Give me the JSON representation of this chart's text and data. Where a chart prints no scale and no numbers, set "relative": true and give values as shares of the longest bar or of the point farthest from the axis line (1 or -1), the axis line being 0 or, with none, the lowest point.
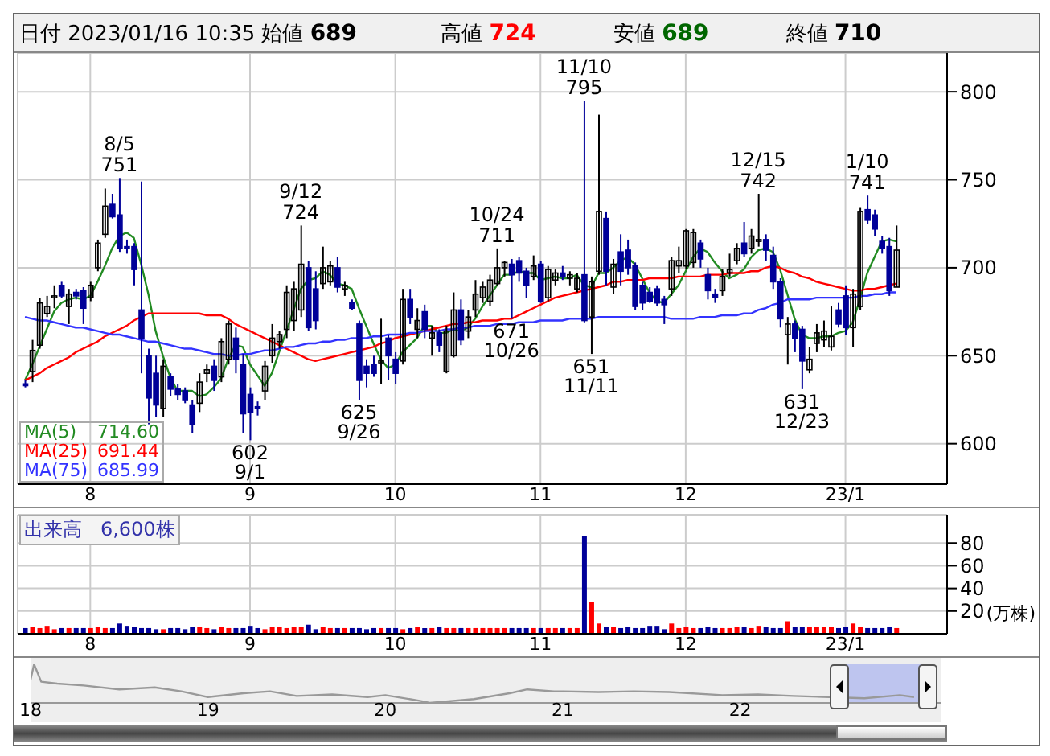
{
  "chart_data": [
    {
      "type": "candlestick",
      "title": "日付 2023/01/16 10:35",
      "annotations": [
        "始値 689",
        "高値 724",
        "安値 689",
        "終値 710",
        {
          "text": "8/5 751",
          "y": 751
        },
        {
          "text": "602 9/1",
          "y": 602
        },
        {
          "text": "9/12 724",
          "y": 724
        },
        {
          "text": "625 9/26",
          "y": 625
        },
        {
          "text": "10/24 711",
          "y": 711
        },
        {
          "text": "671 10/26",
          "y": 671
        },
        {
          "text": "11/10 795",
          "y": 795
        },
        {
          "text": "651 11/11",
          "y": 651
        },
        {
          "text": "12/15 742",
          "y": 742
        },
        {
          "text": "631 12/23",
          "y": 631
        },
        {
          "text": "1/10 741",
          "y": 741
        }
      ],
      "categories": [
        null,
        null,
        null,
        null,
        null,
        null,
        null,
        null,
        null,
        "8",
        null,
        null,
        null,
        null,
        null,
        null,
        null,
        null,
        null,
        null,
        null,
        null,
        null,
        null,
        null,
        null,
        null,
        null,
        null,
        null,
        null,
        "9",
        null,
        null,
        null,
        null,
        null,
        null,
        null,
        null,
        null,
        null,
        null,
        null,
        null,
        null,
        null,
        null,
        null,
        null,
        null,
        "10",
        null,
        null,
        null,
        null,
        null,
        null,
        null,
        null,
        null,
        null,
        null,
        null,
        null,
        null,
        null,
        null,
        null,
        null,
        null,
        "11",
        null,
        null,
        null,
        null,
        null,
        null,
        null,
        null,
        null,
        null,
        null,
        null,
        null,
        null,
        null,
        null,
        null,
        null,
        null,
        "12",
        null,
        null,
        null,
        null,
        null,
        null,
        null,
        null,
        null,
        null,
        null,
        null,
        null,
        null,
        null,
        null,
        null,
        null,
        null,
        null,
        null,
        "23/1",
        null,
        null,
        null,
        null,
        null,
        null,
        null
      ],
      "ohlc": [
        [
          634,
          636,
          632,
          633
        ],
        [
          641,
          659,
          635,
          653
        ],
        [
          656,
          683,
          654,
          680
        ],
        [
          674,
          684,
          672,
          678
        ],
        [
          683,
          690,
          677,
          684
        ],
        [
          690,
          692,
          683,
          684
        ],
        [
          678,
          688,
          668,
          685
        ],
        [
          686,
          688,
          682,
          684
        ],
        [
          687,
          689,
          668,
          677
        ],
        [
          683,
          692,
          681,
          690
        ],
        [
          700,
          716,
          698,
          714
        ],
        [
          719,
          745,
          717,
          735
        ],
        [
          736,
          742,
          728,
          729
        ],
        [
          730,
          751,
          709,
          711
        ],
        [
          712,
          716,
          708,
          711
        ],
        [
          712,
          714,
          690,
          699
        ],
        [
          676,
          749,
          640,
          660
        ],
        [
          650,
          654,
          611,
          626
        ],
        [
          640,
          650,
          615,
          622
        ],
        [
          620,
          648,
          615,
          644
        ],
        [
          638,
          640,
          627,
          631
        ],
        [
          631,
          634,
          625,
          628
        ],
        [
          630,
          632,
          623,
          625
        ],
        [
          622,
          625,
          606,
          611
        ],
        [
          623,
          640,
          618,
          635
        ],
        [
          640,
          645,
          635,
          642
        ],
        [
          644,
          648,
          630,
          636
        ],
        [
          638,
          660,
          635,
          658
        ],
        [
          648,
          670,
          645,
          668
        ],
        [
          660,
          666,
          640,
          648
        ],
        [
          645,
          651,
          606,
          617
        ],
        [
          628,
          632,
          602,
          618
        ],
        [
          621,
          624,
          616,
          620
        ],
        [
          630,
          647,
          625,
          644
        ],
        [
          650,
          668,
          646,
          660
        ],
        [
          658,
          664,
          654,
          662
        ],
        [
          665,
          690,
          660,
          686
        ],
        [
          670,
          692,
          664,
          688
        ],
        [
          676,
          724,
          672,
          702
        ],
        [
          700,
          704,
          664,
          666
        ],
        [
          688,
          698,
          665,
          670
        ],
        [
          691,
          712,
          688,
          700
        ],
        [
          692,
          704,
          690,
          701
        ],
        [
          700,
          706,
          686,
          689
        ],
        [
          688,
          692,
          684,
          690
        ],
        [
          680,
          682,
          676,
          677
        ],
        [
          668,
          670,
          625,
          636
        ],
        [
          644,
          648,
          632,
          640
        ],
        [
          645,
          650,
          638,
          640
        ],
        [
          646,
          671,
          634,
          647
        ],
        [
          660,
          662,
          636,
          650
        ],
        [
          648,
          652,
          634,
          640
        ],
        [
          647,
          688,
          645,
          682
        ],
        [
          682,
          688,
          668,
          672
        ],
        [
          665,
          677,
          660,
          670
        ],
        [
          675,
          679,
          660,
          665
        ],
        [
          660,
          667,
          650,
          663
        ],
        [
          663,
          665,
          652,
          656
        ],
        [
          641,
          667,
          640,
          664
        ],
        [
          650,
          686,
          649,
          676
        ],
        [
          676,
          682,
          656,
          659
        ],
        [
          664,
          676,
          660,
          672
        ],
        [
          676,
          693,
          672,
          685
        ],
        [
          683,
          692,
          680,
          689
        ],
        [
          681,
          696,
          678,
          693
        ],
        [
          691,
          711,
          690,
          700
        ],
        [
          700,
          704,
          695,
          703
        ],
        [
          702,
          705,
          671,
          696
        ],
        [
          704,
          706,
          692,
          697
        ],
        [
          698,
          700,
          683,
          690
        ],
        [
          695,
          707,
          693,
          701
        ],
        [
          702,
          704,
          680,
          681
        ],
        [
          683,
          701,
          681,
          699
        ],
        [
          693,
          699,
          690,
          697
        ],
        [
          697,
          701,
          693,
          695
        ],
        [
          694,
          698,
          690,
          696
        ],
        [
          688,
          697,
          686,
          694
        ],
        [
          696,
          795,
          669,
          670
        ],
        [
          672,
          695,
          651,
          692
        ],
        [
          698,
          787,
          696,
          732
        ],
        [
          728,
          732,
          690,
          698
        ],
        [
          689,
          705,
          685,
          702
        ],
        [
          709,
          719,
          690,
          698
        ],
        [
          710,
          716,
          696,
          700
        ],
        [
          701,
          703,
          676,
          678
        ],
        [
          690,
          692,
          676,
          680
        ],
        [
          686,
          689,
          680,
          681
        ],
        [
          688,
          690,
          678,
          680
        ],
        [
          682,
          684,
          668,
          679
        ],
        [
          688,
          706,
          684,
          704
        ],
        [
          701,
          712,
          697,
          704
        ],
        [
          701,
          722,
          699,
          721
        ],
        [
          703,
          722,
          700,
          720
        ],
        [
          714,
          716,
          700,
          705
        ],
        [
          696,
          700,
          682,
          687
        ],
        [
          685,
          688,
          680,
          683
        ],
        [
          687,
          699,
          684,
          695
        ],
        [
          697,
          708,
          695,
          699
        ],
        [
          704,
          714,
          702,
          711
        ],
        [
          714,
          726,
          706,
          708
        ],
        [
          711,
          722,
          708,
          718
        ],
        [
          715,
          742,
          712,
          716
        ],
        [
          716,
          719,
          704,
          710
        ],
        [
          707,
          712,
          688,
          692
        ],
        [
          692,
          694,
          666,
          671
        ],
        [
          662,
          672,
          645,
          668
        ],
        [
          668,
          670,
          652,
          660
        ],
        [
          665,
          667,
          631,
          647
        ],
        [
          642,
          655,
          640,
          648
        ],
        [
          657,
          668,
          652,
          663
        ],
        [
          659,
          670,
          655,
          664
        ],
        [
          655,
          678,
          653,
          661
        ],
        [
          676,
          680,
          666,
          668
        ],
        [
          684,
          690,
          662,
          666
        ],
        [
          666,
          688,
          655,
          685
        ],
        [
          678,
          734,
          676,
          732
        ],
        [
          733,
          741,
          725,
          727
        ],
        [
          730,
          733,
          718,
          722
        ],
        [
          715,
          718,
          708,
          711
        ],
        [
          712,
          717,
          684,
          687
        ],
        [
          689,
          724,
          689,
          710
        ]
      ],
      "series": [
        {
          "type": "line",
          "name": "MA(5) 714.60",
          "color": "#228b22",
          "values": [
            636,
            645,
            655,
            665,
            675,
            680,
            682,
            683,
            682,
            684,
            692,
            701,
            711,
            718,
            720,
            717,
            702,
            685,
            664,
            650,
            638,
            630,
            630,
            630,
            627,
            628,
            632,
            637,
            648,
            656,
            655,
            645,
            639,
            633,
            640,
            652,
            664,
            676,
            688,
            693,
            694,
            698,
            696,
            691,
            690,
            688,
            677,
            667,
            657,
            648,
            643,
            645,
            652,
            656,
            660,
            667,
            667,
            663,
            663,
            665,
            664,
            666,
            671,
            678,
            684,
            690,
            696,
            696,
            698,
            697,
            697,
            693,
            694,
            695,
            694,
            694,
            696,
            690,
            689,
            697,
            697,
            700,
            704,
            706,
            702,
            694,
            686,
            681,
            680,
            685,
            690,
            698,
            706,
            711,
            709,
            703,
            698,
            694,
            696,
            699,
            706,
            710,
            711,
            709,
            699,
            685,
            671,
            662,
            660,
            660,
            661,
            661,
            663,
            664,
            669,
            682,
            697,
            706,
            715,
            716,
            715
          ]
        },
        {
          "type": "line",
          "name": "MA(25) 691.44",
          "color": "#ff0000",
          "values": [
            636,
            638,
            640,
            643,
            645,
            647,
            649,
            652,
            654,
            656,
            658,
            661,
            663,
            665,
            667,
            670,
            672,
            674,
            674,
            674,
            674,
            674,
            674,
            674,
            674,
            673,
            673,
            673,
            671,
            668,
            666,
            664,
            662,
            660,
            658,
            656,
            654,
            652,
            650,
            648,
            647,
            648,
            649,
            650,
            651,
            652,
            653,
            654,
            655,
            657,
            658,
            660,
            661,
            662,
            663,
            664,
            665,
            666,
            667,
            668,
            668,
            669,
            669,
            670,
            670,
            670,
            671,
            671,
            673,
            675,
            677,
            679,
            681,
            683,
            684,
            685,
            686,
            687,
            688,
            689,
            690,
            692,
            692,
            693,
            693,
            693,
            694,
            694,
            694,
            694,
            695,
            695,
            695,
            695,
            696,
            696,
            696,
            697,
            697,
            697,
            698,
            698,
            700,
            701,
            700,
            698,
            697,
            695,
            694,
            692,
            691,
            690,
            689,
            688,
            687,
            687,
            688,
            688,
            689,
            690,
            691
          ]
        },
        {
          "type": "line",
          "name": "MA(75) 685.99",
          "color": "#3333ff",
          "values": [
            672,
            671,
            670,
            670,
            669,
            668,
            667,
            666,
            666,
            665,
            664,
            663,
            662,
            662,
            661,
            660,
            659,
            658,
            658,
            657,
            656,
            655,
            654,
            654,
            653,
            652,
            651,
            651,
            650,
            650,
            651,
            651,
            652,
            653,
            653,
            654,
            655,
            655,
            656,
            657,
            657,
            658,
            658,
            659,
            659,
            660,
            660,
            660,
            661,
            661,
            662,
            662,
            662,
            663,
            663,
            664,
            664,
            664,
            665,
            665,
            666,
            666,
            667,
            667,
            667,
            668,
            668,
            668,
            669,
            669,
            669,
            670,
            670,
            670,
            670,
            671,
            671,
            671,
            671,
            672,
            672,
            672,
            672,
            672,
            672,
            672,
            672,
            672,
            672,
            671,
            671,
            671,
            671,
            672,
            672,
            672,
            673,
            673,
            673,
            674,
            674,
            676,
            677,
            679,
            680,
            682,
            682,
            682,
            682,
            683,
            683,
            683,
            683,
            683,
            683,
            684,
            684,
            685,
            685,
            686,
            686
          ]
        }
      ],
      "ylim": [
        577,
        822
      ],
      "yticks": [
        600,
        650,
        700,
        750,
        800
      ],
      "grid": true,
      "legend": "bottom left"
    },
    {
      "type": "bar",
      "title": "出来高 6,600株",
      "ylabel": "(万株)",
      "categories": [
        null,
        null,
        null,
        null,
        null,
        null,
        null,
        null,
        null,
        "8",
        null,
        null,
        null,
        null,
        null,
        null,
        null,
        null,
        null,
        null,
        null,
        null,
        null,
        null,
        null,
        null,
        null,
        null,
        null,
        null,
        null,
        "9",
        null,
        null,
        null,
        null,
        null,
        null,
        null,
        null,
        null,
        null,
        null,
        null,
        null,
        null,
        null,
        null,
        null,
        null,
        null,
        "10",
        null,
        null,
        null,
        null,
        null,
        null,
        null,
        null,
        null,
        null,
        null,
        null,
        null,
        null,
        null,
        null,
        null,
        null,
        null,
        "11",
        null,
        null,
        null,
        null,
        null,
        null,
        null,
        null,
        null,
        null,
        null,
        null,
        null,
        null,
        null,
        null,
        null,
        null,
        null,
        "12",
        null,
        null,
        null,
        null,
        null,
        null,
        null,
        null,
        null,
        null,
        null,
        null,
        null,
        null,
        null,
        null,
        null,
        null,
        null,
        null,
        null,
        "23/1",
        null,
        null,
        null,
        null,
        null,
        null,
        null
      ],
      "values": [
        5,
        6,
        5,
        7,
        4,
        5,
        5,
        5,
        5,
        5,
        6,
        5,
        5,
        9,
        7,
        6,
        5,
        5,
        4,
        4,
        5,
        5,
        4,
        6,
        6,
        5,
        4,
        6,
        5,
        5,
        5,
        7,
        5,
        4,
        6,
        6,
        5,
        6,
        6,
        8,
        4,
        6,
        5,
        5,
        5,
        5,
        5,
        4,
        5,
        5,
        5,
        5,
        4,
        5,
        6,
        5,
        5,
        6,
        5,
        5,
        5,
        5,
        5,
        5,
        5,
        5,
        5,
        5,
        5,
        5,
        5,
        5,
        5,
        5,
        5,
        5,
        5,
        86,
        28,
        9,
        6,
        6,
        5,
        6,
        5,
        5,
        7,
        7,
        4,
        9,
        5,
        6,
        5,
        5,
        6,
        5,
        5,
        5,
        6,
        6,
        5,
        7,
        6,
        5,
        5,
        11,
        6,
        6,
        6,
        6,
        6,
        6,
        5,
        6,
        9,
        6,
        5,
        5,
        5,
        6,
        5
      ],
      "colors": [
        "#000099",
        "#ff0000",
        "#ff0000",
        "#ff0000",
        "#ff0000",
        "#000099",
        "#ff0000",
        "#000099",
        "#000099",
        "#ff0000",
        "#ff0000",
        "#ff0000",
        "#000099",
        "#000099",
        "#000099",
        "#000099",
        "#000099",
        "#000099",
        "#000099",
        "#ff0000",
        "#000099",
        "#000099",
        "#000099",
        "#000099",
        "#ff0000",
        "#ff0000",
        "#000099",
        "#ff0000",
        "#ff0000",
        "#000099",
        "#000099",
        "#000099",
        "#000099",
        "#ff0000",
        "#ff0000",
        "#ff0000",
        "#ff0000",
        "#ff0000",
        "#ff0000",
        "#000099",
        "#000099",
        "#ff0000",
        "#ff0000",
        "#000099",
        "#ff0000",
        "#000099",
        "#000099",
        "#000099",
        "#000099",
        "#ff0000",
        "#000099",
        "#000099",
        "#ff0000",
        "#000099",
        "#ff0000",
        "#000099",
        "#ff0000",
        "#000099",
        "#ff0000",
        "#ff0000",
        "#000099",
        "#ff0000",
        "#ff0000",
        "#ff0000",
        "#ff0000",
        "#ff0000",
        "#ff0000",
        "#000099",
        "#000099",
        "#000099",
        "#ff0000",
        "#000099",
        "#ff0000",
        "#ff0000",
        "#000099",
        "#ff0000",
        "#ff0000",
        "#000099",
        "#ff0000",
        "#ff0000",
        "#000099",
        "#ff0000",
        "#000099",
        "#000099",
        "#000099",
        "#000099",
        "#000099",
        "#000099",
        "#000099",
        "#ff0000",
        "#ff0000",
        "#ff0000",
        "#ff0000",
        "#000099",
        "#000099",
        "#000099",
        "#ff0000",
        "#ff0000",
        "#ff0000",
        "#000099",
        "#ff0000",
        "#ff0000",
        "#000099",
        "#000099",
        "#000099",
        "#ff0000",
        "#000099",
        "#000099",
        "#ff0000",
        "#ff0000",
        "#ff0000",
        "#ff0000",
        "#000099",
        "#000099",
        "#ff0000",
        "#ff0000",
        "#000099",
        "#000099",
        "#000099",
        "#000099",
        "#ff0000"
      ],
      "ylim": [
        0,
        105
      ],
      "yticks": [
        20,
        40,
        60,
        80
      ],
      "grid": true
    },
    {
      "type": "line",
      "relative": true,
      "series": [
        {
          "color": "#999999",
          "x": [
            2018,
            2018.02,
            2018.06,
            2018.15,
            2018.3,
            2018.5,
            2018.7,
            2018.85,
            2019,
            2019.2,
            2019.35,
            2019.5,
            2019.7,
            2019.9,
            2020,
            2020.2,
            2020.25,
            2020.5,
            2020.7,
            2020.8,
            2020.95,
            2021,
            2021.2,
            2021.4,
            2021.6,
            2021.9,
            2022.1,
            2022.3,
            2022.5,
            2022.7,
            2022.9,
            2022.98
          ],
          "values": [
            0.6,
            1,
            0.55,
            0.5,
            0.45,
            0.35,
            0.4,
            0.3,
            0.15,
            0.25,
            0.3,
            0.18,
            0.22,
            0.15,
            0.2,
            0.05,
            0,
            0.1,
            0.25,
            0.35,
            0.3,
            0.3,
            0.28,
            0.3,
            0.28,
            0.2,
            0.22,
            0.18,
            0.15,
            0.12,
            0.2,
            0.15
          ]
        }
      ],
      "xlim": [
        2018,
        2023.13
      ],
      "xticks": [
        {
          "value": 2018,
          "label": "18"
        },
        {
          "value": 2019,
          "label": "19"
        },
        {
          "value": 2020,
          "label": "20"
        },
        {
          "value": 2021,
          "label": "21"
        },
        {
          "value": 2022,
          "label": "22"
        }
      ],
      "bands": [
        {
          "axis": "x",
          "from": 2022.56,
          "to": 2023.06,
          "color": "#aab4f0"
        }
      ]
    }
  ]
}
